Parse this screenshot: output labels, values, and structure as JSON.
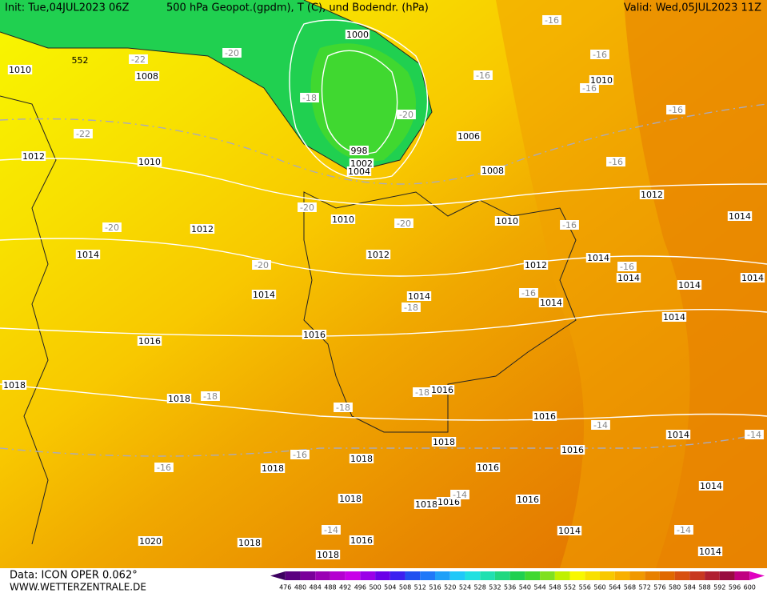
{
  "header": {
    "init": "Init: Tue,04JUL2023 06Z",
    "title": "500 hPa Geopot.(gpdm), T (C), und Bodendr. (hPa)",
    "valid": "Valid: Wed,05JUL2023 11Z"
  },
  "footer": {
    "data": "Data: ICON OPER 0.062°",
    "site": "WWW.WETTERZENTRALE.DE"
  },
  "colorbar": {
    "labels": [
      476,
      480,
      484,
      488,
      492,
      496,
      500,
      504,
      508,
      512,
      516,
      520,
      524,
      528,
      532,
      536,
      540,
      544,
      548,
      552,
      556,
      560,
      564,
      568,
      572,
      576,
      580,
      584,
      588,
      592,
      596,
      600
    ],
    "colors": [
      "#3c0060",
      "#5a0080",
      "#7a009a",
      "#9a00b4",
      "#b400d0",
      "#c800e8",
      "#9a00e8",
      "#6a00e8",
      "#3c20f0",
      "#2050f0",
      "#2078f8",
      "#20a0f8",
      "#20c8f8",
      "#20e0e0",
      "#20e0b0",
      "#20d880",
      "#20d050",
      "#40d830",
      "#80e020",
      "#c0f000",
      "#f8f800",
      "#f8e000",
      "#f8c800",
      "#f8b000",
      "#f09800",
      "#e88000",
      "#e06800",
      "#d85010",
      "#c83820",
      "#b02030",
      "#980c40",
      "#c00080",
      "#e000c0"
    ]
  },
  "geopotential_labels": [
    552
  ],
  "isobar_labels": [
    1000,
    1010,
    1008,
    1006,
    1010,
    998,
    1002,
    1004,
    1012,
    1010,
    1008,
    1012,
    1010,
    1010,
    1014,
    1012,
    1014,
    1012,
    1012,
    1014,
    1014,
    1014,
    1014,
    1014,
    1014,
    1014,
    1014,
    1016,
    1016,
    1018,
    1016,
    1018,
    1016,
    1014,
    1018,
    1016,
    1018,
    1018,
    1016,
    1014,
    1018,
    1018,
    1016,
    1016,
    1014,
    1020,
    1018,
    1016,
    1018,
    1014
  ],
  "temperature_labels": [
    -16,
    -22,
    -20,
    -16,
    -16,
    -18,
    -16,
    -20,
    -16,
    -22,
    -16,
    -20,
    -20,
    -20,
    -16,
    -20,
    -16,
    -16,
    -18,
    -18,
    -18,
    -18,
    -14,
    -14,
    -16,
    -16,
    -14,
    -14,
    -14
  ]
}
